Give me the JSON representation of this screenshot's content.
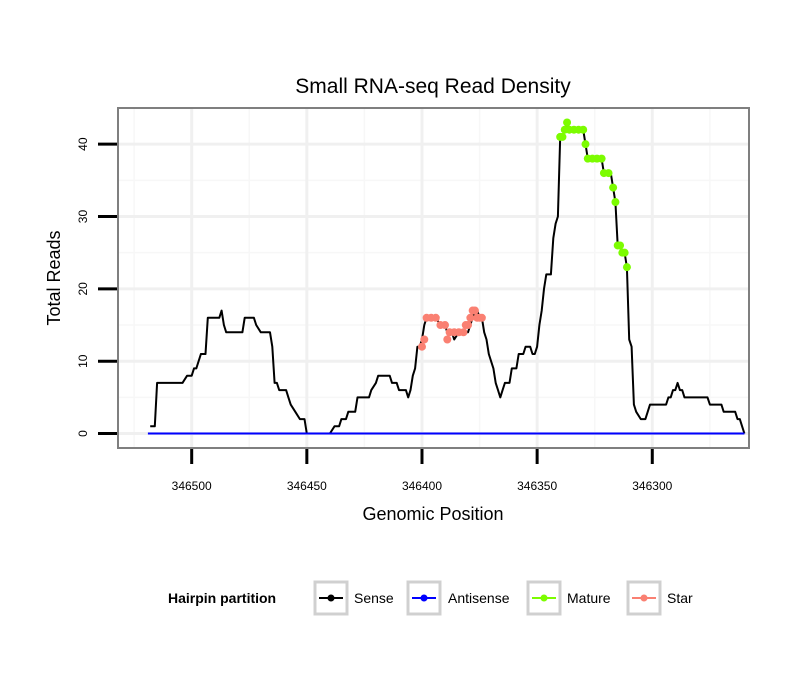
{
  "chart_data": {
    "type": "line",
    "title": "Small RNA-seq Read Density",
    "xlabel": "Genomic Position",
    "ylabel": "Total Reads",
    "xlim": [
      346532,
      346258
    ],
    "ylim": [
      -2,
      45
    ],
    "x_reversed": true,
    "x_ticks": [
      346500,
      346450,
      346400,
      346350,
      346300
    ],
    "x_tick_labels": [
      "346500",
      "346450",
      "346400",
      "346350",
      "346300"
    ],
    "y_ticks": [
      0,
      10,
      20,
      30,
      40
    ],
    "y_tick_labels": [
      "0",
      "10",
      "20",
      "30",
      "40"
    ],
    "grid": true,
    "legend": {
      "title": "Hairpin partition",
      "position": "bottom",
      "entries": [
        "Sense",
        "Antisense",
        "Mature",
        "Star"
      ]
    },
    "series": [
      {
        "name": "Sense",
        "color": "#000000",
        "points": [
          [
            346518,
            1
          ],
          [
            346516,
            1
          ],
          [
            346515,
            7
          ],
          [
            346513,
            7
          ],
          [
            346504,
            7
          ],
          [
            346502,
            8
          ],
          [
            346500,
            8
          ],
          [
            346499,
            9
          ],
          [
            346498,
            9
          ],
          [
            346496,
            11
          ],
          [
            346494,
            11
          ],
          [
            346493,
            16
          ],
          [
            346490,
            16
          ],
          [
            346488,
            16
          ],
          [
            346487,
            17
          ],
          [
            346486,
            15
          ],
          [
            346485,
            14
          ],
          [
            346480,
            14
          ],
          [
            346478,
            14
          ],
          [
            346477,
            16
          ],
          [
            346473,
            16
          ],
          [
            346472,
            15
          ],
          [
            346470,
            14
          ],
          [
            346466,
            14
          ],
          [
            346465,
            12
          ],
          [
            346464,
            7
          ],
          [
            346463,
            7
          ],
          [
            346462,
            6
          ],
          [
            346459,
            6
          ],
          [
            346458,
            5
          ],
          [
            346457,
            4
          ],
          [
            346455,
            3
          ],
          [
            346453,
            2
          ],
          [
            346451,
            2
          ],
          [
            346450,
            0
          ],
          [
            346440,
            0
          ],
          [
            346438,
            1
          ],
          [
            346436,
            1
          ],
          [
            346435,
            2
          ],
          [
            346433,
            2
          ],
          [
            346432,
            3
          ],
          [
            346429,
            3
          ],
          [
            346428,
            5
          ],
          [
            346423,
            5
          ],
          [
            346422,
            6
          ],
          [
            346420,
            7
          ],
          [
            346419,
            8
          ],
          [
            346414,
            8
          ],
          [
            346413,
            7
          ],
          [
            346411,
            7
          ],
          [
            346410,
            6
          ],
          [
            346407,
            6
          ],
          [
            346406,
            5
          ],
          [
            346405,
            6
          ],
          [
            346404,
            8
          ],
          [
            346403,
            9
          ],
          [
            346402,
            12
          ],
          [
            346401,
            12
          ],
          [
            346400,
            13
          ],
          [
            346399,
            15
          ],
          [
            346398,
            16
          ],
          [
            346396,
            16
          ],
          [
            346394,
            16
          ],
          [
            346392,
            15
          ],
          [
            346390,
            15
          ],
          [
            346389,
            14
          ],
          [
            346387,
            14
          ],
          [
            346386,
            13
          ],
          [
            346384,
            14
          ],
          [
            346381,
            14
          ],
          [
            346380,
            14
          ],
          [
            346379,
            15
          ],
          [
            346378,
            16
          ],
          [
            346377,
            17
          ],
          [
            346376,
            17
          ],
          [
            346375,
            16
          ],
          [
            346374,
            16
          ],
          [
            346373,
            14
          ],
          [
            346372,
            13
          ],
          [
            346371,
            11
          ],
          [
            346369,
            9
          ],
          [
            346368,
            7
          ],
          [
            346367,
            6
          ],
          [
            346366,
            5
          ],
          [
            346365,
            6
          ],
          [
            346364,
            7
          ],
          [
            346362,
            7
          ],
          [
            346361,
            9
          ],
          [
            346359,
            9
          ],
          [
            346358,
            11
          ],
          [
            346356,
            11
          ],
          [
            346355,
            12
          ],
          [
            346353,
            12
          ],
          [
            346352,
            11
          ],
          [
            346351,
            11
          ],
          [
            346350,
            12
          ],
          [
            346349,
            15
          ],
          [
            346348,
            17
          ],
          [
            346347,
            20
          ],
          [
            346346,
            22
          ],
          [
            346344,
            22
          ],
          [
            346343,
            27
          ],
          [
            346342,
            29
          ],
          [
            346341,
            30
          ],
          [
            346340,
            41
          ],
          [
            346339,
            41
          ],
          [
            346338,
            42
          ],
          [
            346337,
            43
          ],
          [
            346336,
            42
          ],
          [
            346334,
            42
          ],
          [
            346330,
            42
          ],
          [
            346329,
            40
          ],
          [
            346328,
            38
          ],
          [
            346326,
            38
          ],
          [
            346322,
            38
          ],
          [
            346321,
            36
          ],
          [
            346318,
            36
          ],
          [
            346317,
            34
          ],
          [
            346316,
            32
          ],
          [
            346315,
            26
          ],
          [
            346314,
            26
          ],
          [
            346313,
            25
          ],
          [
            346312,
            25
          ],
          [
            346311,
            23
          ],
          [
            346310,
            13
          ],
          [
            346309,
            12
          ],
          [
            346308,
            4
          ],
          [
            346307,
            3
          ],
          [
            346305,
            2
          ],
          [
            346303,
            2
          ],
          [
            346302,
            3
          ],
          [
            346301,
            4
          ],
          [
            346300,
            4
          ],
          [
            346294,
            4
          ],
          [
            346293,
            5
          ],
          [
            346292,
            5
          ],
          [
            346291,
            6
          ],
          [
            346290,
            6
          ],
          [
            346289,
            7
          ],
          [
            346288,
            6
          ],
          [
            346287,
            6
          ],
          [
            346286,
            5
          ],
          [
            346285,
            5
          ],
          [
            346276,
            5
          ],
          [
            346275,
            4
          ],
          [
            346274,
            4
          ],
          [
            346270,
            4
          ],
          [
            346269,
            3
          ],
          [
            346264,
            3
          ],
          [
            346263,
            2
          ],
          [
            346262,
            2
          ],
          [
            346261,
            1
          ],
          [
            346260,
            0
          ]
        ]
      },
      {
        "name": "Antisense",
        "color": "#0000ff",
        "points": [
          [
            346519,
            0
          ],
          [
            346260,
            0
          ]
        ]
      },
      {
        "name": "Mature",
        "color": "#7cfc00",
        "points": [
          [
            346340,
            41
          ],
          [
            346339,
            41
          ],
          [
            346338,
            42
          ],
          [
            346337,
            43
          ],
          [
            346336,
            42
          ],
          [
            346334,
            42
          ],
          [
            346332,
            42
          ],
          [
            346330,
            42
          ],
          [
            346329,
            40
          ],
          [
            346328,
            38
          ],
          [
            346326,
            38
          ],
          [
            346324,
            38
          ],
          [
            346322,
            38
          ],
          [
            346321,
            36
          ],
          [
            346319,
            36
          ],
          [
            346317,
            34
          ],
          [
            346316,
            32
          ],
          [
            346315,
            26
          ],
          [
            346314,
            26
          ],
          [
            346313,
            25
          ],
          [
            346312,
            25
          ],
          [
            346311,
            23
          ]
        ]
      },
      {
        "name": "Star",
        "color": "#fa8072",
        "points": [
          [
            346400,
            12
          ],
          [
            346399,
            13
          ],
          [
            346398,
            16
          ],
          [
            346396,
            16
          ],
          [
            346394,
            16
          ],
          [
            346392,
            15
          ],
          [
            346390,
            15
          ],
          [
            346389,
            13
          ],
          [
            346388,
            14
          ],
          [
            346386,
            14
          ],
          [
            346384,
            14
          ],
          [
            346382,
            14
          ],
          [
            346381,
            15
          ],
          [
            346380,
            15
          ],
          [
            346379,
            16
          ],
          [
            346378,
            17
          ],
          [
            346377,
            17
          ],
          [
            346376,
            16
          ],
          [
            346375,
            16
          ],
          [
            346374,
            16
          ]
        ]
      }
    ]
  }
}
